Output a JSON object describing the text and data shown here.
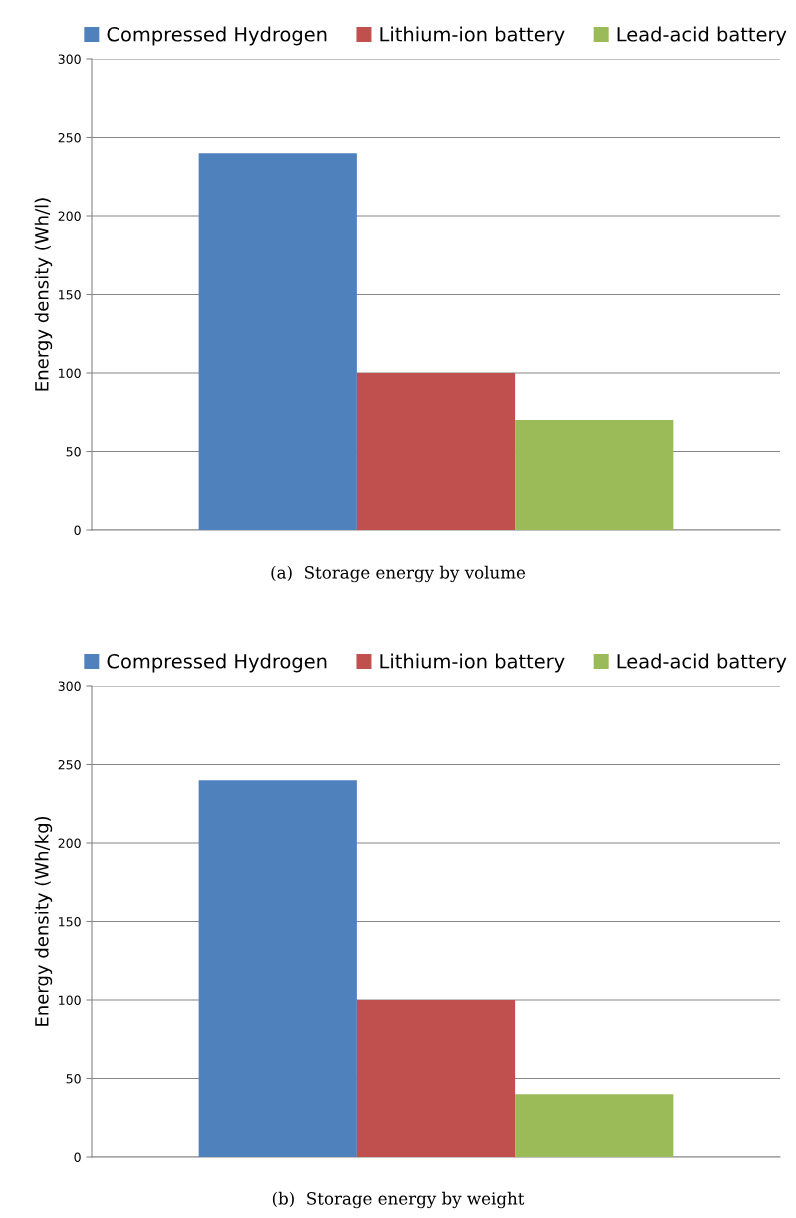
{
  "chart_data": [
    {
      "type": "bar",
      "categories": [
        null
      ],
      "ylabel": "Energy density (Wh/l)",
      "annotations": [
        "(a)  Storage energy by volume"
      ],
      "series": [
        {
          "name": "Compressed Hydrogen",
          "color": "#4f81bd",
          "values": [
            240
          ]
        },
        {
          "name": "Lithium-ion battery",
          "color": "#c0504d",
          "values": [
            100
          ]
        },
        {
          "name": "Lead-acid battery",
          "color": "#9bbb59",
          "values": [
            70
          ]
        }
      ],
      "ylim": [
        0,
        300
      ],
      "yticks": [
        0,
        50,
        100,
        150,
        200,
        250,
        300
      ],
      "grid": "y",
      "legend": "top",
      "tick_labels": "y"
    },
    {
      "type": "bar",
      "categories": [
        null
      ],
      "ylabel": "Energy density (Wh/kg)",
      "annotations": [
        "(b)  Storage energy by weight"
      ],
      "series": [
        {
          "name": "Compressed Hydrogen",
          "color": "#4f81bd",
          "values": [
            240
          ]
        },
        {
          "name": "Lithium-ion battery",
          "color": "#c0504d",
          "values": [
            100
          ]
        },
        {
          "name": "Lead-acid battery",
          "color": "#9bbb59",
          "values": [
            40
          ]
        }
      ],
      "ylim": [
        0,
        300
      ],
      "yticks": [
        0,
        50,
        100,
        150,
        200,
        250,
        300
      ],
      "grid": "y",
      "legend": "top",
      "tick_labels": "y"
    }
  ]
}
